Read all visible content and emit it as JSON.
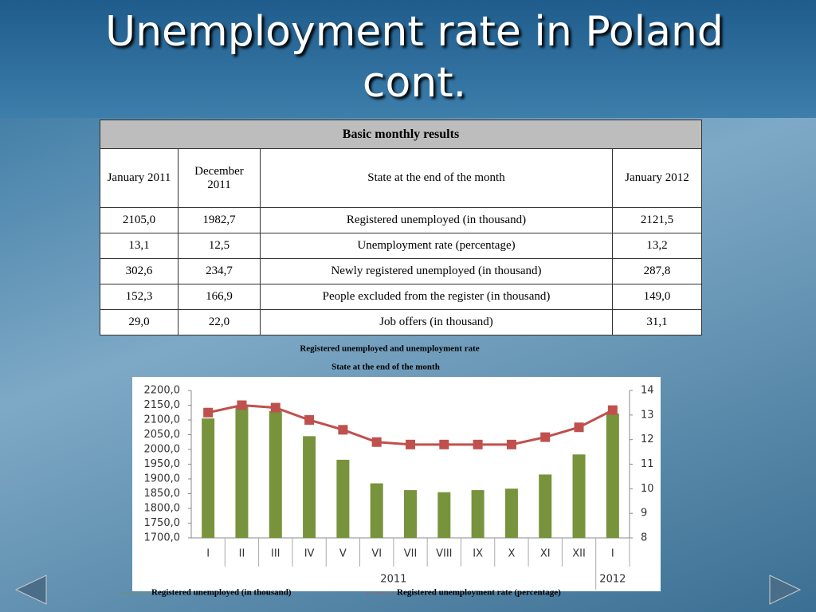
{
  "slide_title": "Unemployment rate in Poland cont.",
  "table": {
    "caption": "Basic monthly results",
    "header": [
      "January 2011",
      "December 2011",
      "State  at the end of the month",
      "January 2012"
    ],
    "rows": [
      [
        "2105,0",
        "1982,7",
        "Registered unemployed (in thousand)",
        "2121,5"
      ],
      [
        "13,1",
        "12,5",
        "Unemployment rate (percentage)",
        "13,2"
      ],
      [
        "302,6",
        "234,7",
        "Newly registered unemployed (in thousand)",
        "287,8"
      ],
      [
        "152,3",
        "166,9",
        "People excluded from the register (in thousand)",
        "149,0"
      ],
      [
        "29,0",
        "22,0",
        "Job offers (in thousand)",
        "31,1"
      ]
    ]
  },
  "chart_data": {
    "type": "bar",
    "title": "Registered unemployed and unemployment rate",
    "subtitle": "State at the end of the month",
    "categories": [
      "I",
      "II",
      "III",
      "IV",
      "V",
      "VI",
      "VII",
      "VIII",
      "IX",
      "X",
      "XI",
      "XII",
      "I"
    ],
    "x_group_labels": [
      "2011",
      "2012"
    ],
    "series": [
      {
        "name": "Registered  unemployed  (in thousand)",
        "type": "bar",
        "color": "#77933c",
        "values": [
          2105,
          2150,
          2130,
          2045,
          1965,
          1885,
          1862,
          1855,
          1862,
          1867,
          1915,
          1983,
          2122
        ]
      },
      {
        "name": "Registered  unemployment  rate (percentage)",
        "type": "line",
        "axis": "y2",
        "color": "#c0504d",
        "values": [
          13.1,
          13.4,
          13.3,
          12.8,
          12.4,
          11.9,
          11.8,
          11.8,
          11.8,
          11.8,
          12.1,
          12.5,
          13.2
        ]
      }
    ],
    "ylim": [
      1700,
      2200
    ],
    "yticks": [
      {
        "value": 1700,
        "label": "1700,0"
      },
      {
        "value": 1750,
        "label": "1750,0"
      },
      {
        "value": 1800,
        "label": "1800,0"
      },
      {
        "value": 1850,
        "label": "1850,0"
      },
      {
        "value": 1900,
        "label": "1900,0"
      },
      {
        "value": 1950,
        "label": "1950,0"
      },
      {
        "value": 2000,
        "label": "2000,0"
      },
      {
        "value": 2050,
        "label": "2050,0"
      },
      {
        "value": 2100,
        "label": "2100,0"
      },
      {
        "value": 2150,
        "label": "2150,0"
      },
      {
        "value": 2200,
        "label": "2200,0"
      }
    ],
    "y2lim": [
      8,
      14
    ],
    "y2ticks": [
      8,
      9,
      10,
      11,
      12,
      13,
      14
    ]
  }
}
